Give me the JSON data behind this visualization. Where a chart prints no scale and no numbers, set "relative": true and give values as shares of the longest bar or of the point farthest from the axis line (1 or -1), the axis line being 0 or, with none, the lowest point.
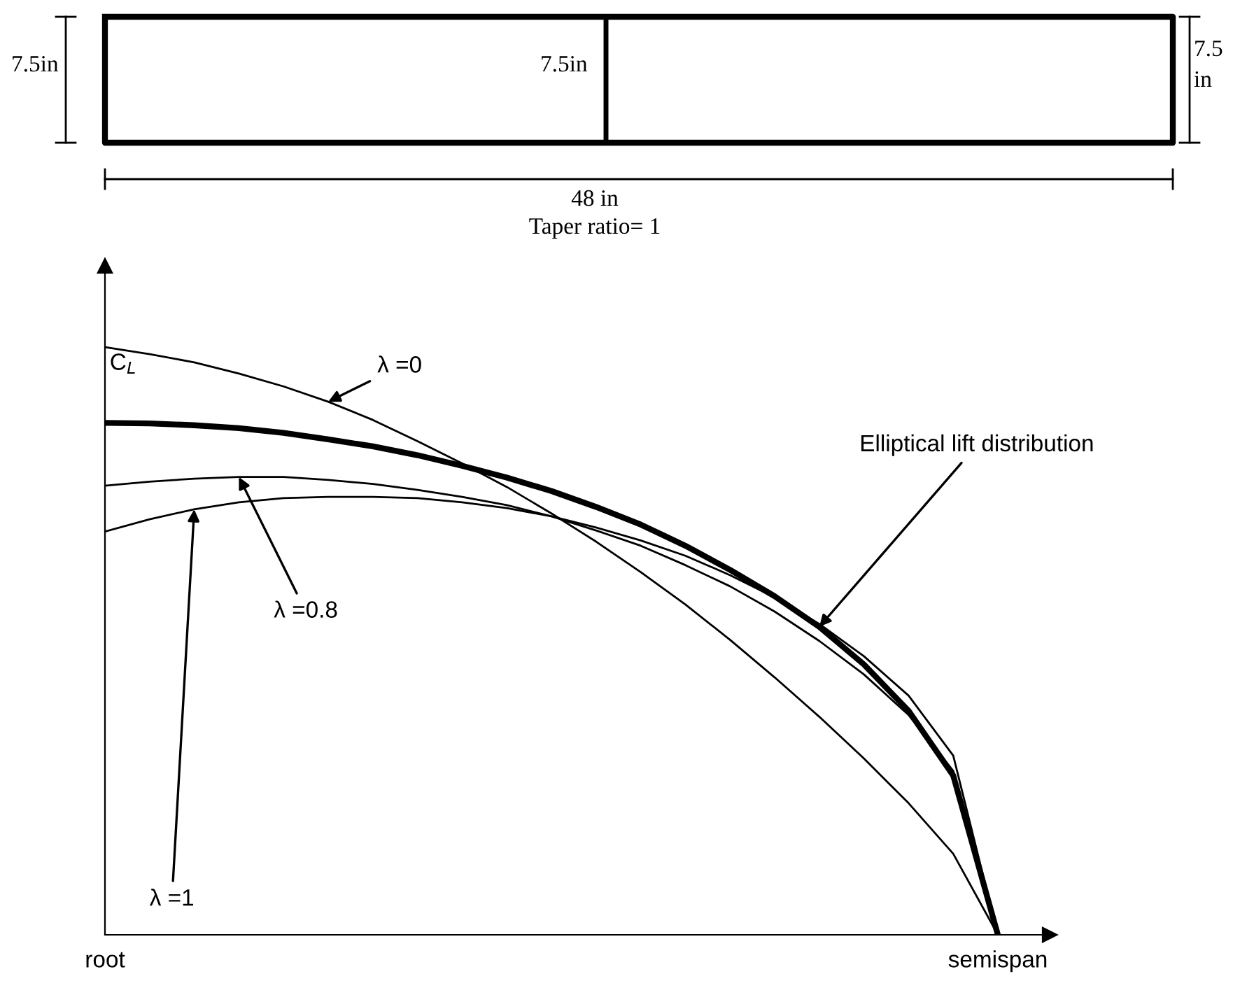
{
  "chart_data": {
    "type": "line",
    "relative": true,
    "ylabel": "C$_{L}$",
    "categories": [
      "root",
      null,
      null,
      null,
      null,
      null,
      null,
      null,
      null,
      null,
      null,
      null,
      null,
      null,
      null,
      null,
      null,
      null,
      null,
      null,
      "semispan"
    ],
    "series": [
      {
        "color": "#000000",
        "values": [
          1,
          0.988,
          0.974,
          0.955,
          0.933,
          0.907,
          0.876,
          0.84,
          0.802,
          0.762,
          0.717,
          0.669,
          0.617,
          0.562,
          0.502,
          0.438,
          0.371,
          0.3,
          0.224,
          0.138,
          0
        ]
      },
      {
        "color": "#000000",
        "values": [
          0.871,
          0.87,
          0.867,
          0.862,
          0.854,
          0.843,
          0.831,
          0.816,
          0.798,
          0.778,
          0.755,
          0.728,
          0.698,
          0.662,
          0.621,
          0.576,
          0.524,
          0.46,
          0.381,
          0.271,
          0
        ]
      },
      {
        "color": "#000000",
        "values": [
          0.686,
          0.707,
          0.724,
          0.736,
          0.743,
          0.745,
          0.745,
          0.743,
          0.736,
          0.726,
          0.712,
          0.693,
          0.671,
          0.645,
          0.612,
          0.574,
          0.529,
          0.474,
          0.407,
          0.305,
          0
        ]
      },
      {
        "color": "#000000",
        "values": [
          0.764,
          0.771,
          0.776,
          0.779,
          0.779,
          0.774,
          0.767,
          0.757,
          0.745,
          0.731,
          0.712,
          0.688,
          0.662,
          0.629,
          0.593,
          0.55,
          0.5,
          0.443,
          0.374,
          0.279,
          0
        ]
      }
    ],
    "annotations": [
      "7.5in",
      "7.5in",
      "7.5\nin",
      "48 in",
      "Taper ratio= 1",
      "λ =0",
      "Elliptical lift distribution",
      "λ =1",
      "λ =0.8"
    ]
  }
}
